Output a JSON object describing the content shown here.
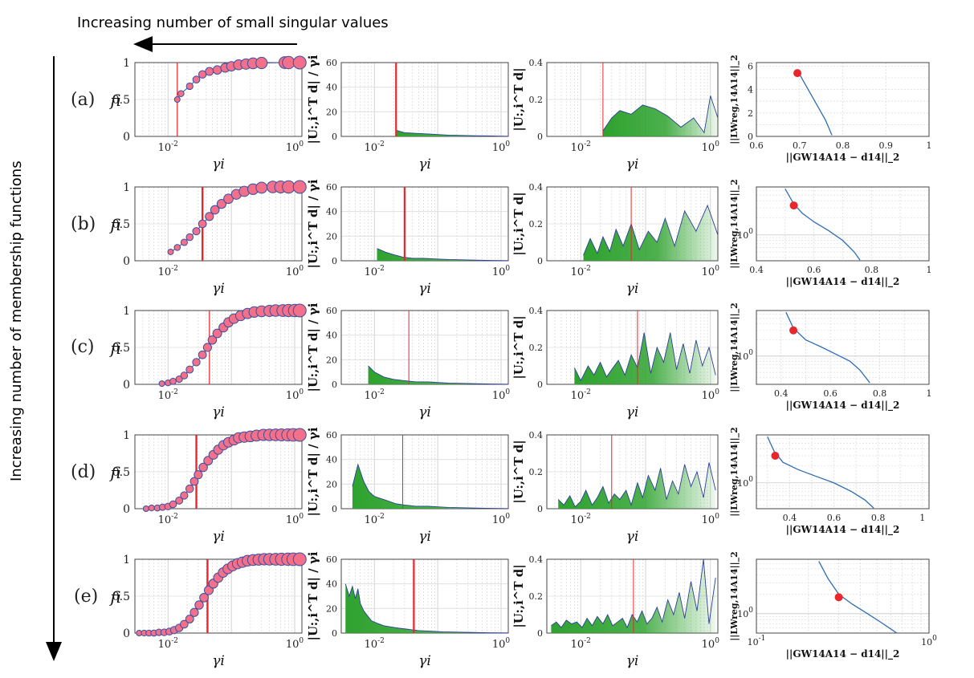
{
  "annotations": {
    "top_arrow_label": "Increasing number of small singular values",
    "side_arrow_label": "Increasing number of membership functions"
  },
  "rows": [
    {
      "label": "(a)"
    },
    {
      "label": "(b)"
    },
    {
      "label": "(c)"
    },
    {
      "label": "(d)"
    },
    {
      "label": "(e)"
    }
  ],
  "chart_data": [
    {
      "type": "scatter",
      "panel": "filter-factors",
      "xlabel": "γ_i",
      "ylabel": "f_i",
      "xscale": "log",
      "xlim": [
        0.003,
        1.3
      ],
      "ylim": [
        0,
        1
      ],
      "yticks": [
        0,
        0.5,
        1
      ],
      "xticks": [
        "10^{-2}",
        "10^{0}"
      ],
      "grid": true,
      "colors": {
        "marker_face": "#f2708a",
        "marker_edge": "#3a4fa0",
        "line": "#3a4fa0",
        "cutoff": "#e8262b"
      },
      "cutoffs": [
        0.014,
        0.035,
        0.045,
        0.028,
        0.042
      ],
      "series": [
        {
          "row": "(a)",
          "x": [
            0.014,
            0.016,
            0.022,
            0.028,
            0.035,
            0.045,
            0.06,
            0.08,
            0.1,
            0.13,
            0.17,
            0.22,
            0.3,
            0.7,
            0.8,
            1.2
          ],
          "y": [
            0.5,
            0.58,
            0.68,
            0.77,
            0.84,
            0.88,
            0.9,
            0.93,
            0.95,
            0.97,
            0.98,
            0.99,
            0.995,
            1.0,
            1.0,
            1.0
          ]
        },
        {
          "row": "(b)",
          "x": [
            0.011,
            0.014,
            0.018,
            0.022,
            0.028,
            0.035,
            0.045,
            0.055,
            0.07,
            0.09,
            0.12,
            0.16,
            0.22,
            0.3,
            0.45,
            0.6,
            0.8,
            1.2
          ],
          "y": [
            0.12,
            0.18,
            0.25,
            0.32,
            0.4,
            0.5,
            0.6,
            0.69,
            0.77,
            0.84,
            0.9,
            0.94,
            0.97,
            0.99,
            1.0,
            1.0,
            1.0,
            1.0
          ]
        },
        {
          "row": "(c)",
          "x": [
            0.008,
            0.01,
            0.012,
            0.015,
            0.018,
            0.022,
            0.028,
            0.035,
            0.042,
            0.05,
            0.06,
            0.075,
            0.09,
            0.11,
            0.14,
            0.18,
            0.23,
            0.3,
            0.4,
            0.5,
            0.65,
            0.8,
            1.0,
            1.2
          ],
          "y": [
            0.01,
            0.02,
            0.04,
            0.07,
            0.12,
            0.2,
            0.3,
            0.4,
            0.5,
            0.6,
            0.69,
            0.77,
            0.84,
            0.89,
            0.93,
            0.96,
            0.98,
            0.99,
            0.995,
            1.0,
            1.0,
            1.0,
            1.0,
            1.0
          ]
        },
        {
          "row": "(d)",
          "x": [
            0.0045,
            0.0055,
            0.0068,
            0.0082,
            0.01,
            0.012,
            0.015,
            0.018,
            0.022,
            0.026,
            0.03,
            0.036,
            0.043,
            0.052,
            0.062,
            0.075,
            0.09,
            0.11,
            0.13,
            0.16,
            0.2,
            0.25,
            0.32,
            0.4,
            0.5,
            0.62,
            0.78,
            0.95,
            1.2
          ],
          "y": [
            0.0,
            0.01,
            0.01,
            0.02,
            0.03,
            0.06,
            0.11,
            0.18,
            0.27,
            0.37,
            0.46,
            0.56,
            0.65,
            0.73,
            0.8,
            0.86,
            0.9,
            0.93,
            0.96,
            0.97,
            0.98,
            0.99,
            1.0,
            1.0,
            1.0,
            1.0,
            1.0,
            1.0,
            1.0
          ]
        },
        {
          "row": "(e)",
          "x": [
            0.0035,
            0.0042,
            0.005,
            0.006,
            0.0072,
            0.0087,
            0.0105,
            0.0125,
            0.015,
            0.018,
            0.022,
            0.026,
            0.031,
            0.037,
            0.044,
            0.052,
            0.062,
            0.074,
            0.088,
            0.105,
            0.125,
            0.15,
            0.18,
            0.22,
            0.27,
            0.33,
            0.4,
            0.5,
            0.62,
            0.78,
            0.95,
            1.2
          ],
          "y": [
            0.0,
            0.0,
            0.0,
            0.0,
            0.01,
            0.01,
            0.02,
            0.04,
            0.07,
            0.12,
            0.19,
            0.28,
            0.38,
            0.48,
            0.58,
            0.67,
            0.75,
            0.82,
            0.87,
            0.91,
            0.94,
            0.96,
            0.98,
            0.99,
            0.995,
            1.0,
            1.0,
            1.0,
            1.0,
            1.0,
            1.0,
            1.0
          ]
        }
      ]
    },
    {
      "type": "area",
      "panel": "picard-ratio",
      "xlabel": "γ_i",
      "ylabel": "|U_{:,i}^T d| / γ_i",
      "xscale": "log",
      "xlim": [
        0.003,
        1.3
      ],
      "ylim": [
        0,
        60
      ],
      "yticks": [
        0,
        20,
        40,
        60
      ],
      "xticks": [
        "10^{-2}",
        "10^{0}"
      ],
      "grid": true,
      "colors": {
        "fill": "#2ea22e",
        "line": "#2b3f9a",
        "cutoff": "#e8262b"
      },
      "cutoffs": [
        0.022,
        0.03,
        0.035,
        0.028,
        0.042
      ],
      "series": [
        {
          "row": "(a)",
          "x": [
            0.022,
            0.03,
            0.045,
            0.07,
            0.1,
            0.15,
            0.25,
            0.4,
            0.6,
            1.0,
            1.3
          ],
          "y": [
            5,
            3,
            2.5,
            2,
            1.5,
            1,
            0.8,
            0.5,
            0.4,
            0.2,
            0.1
          ]
        },
        {
          "row": "(b)",
          "x": [
            0.011,
            0.015,
            0.02,
            0.028,
            0.04,
            0.06,
            0.09,
            0.15,
            0.25,
            0.4,
            0.7,
            1.3
          ],
          "y": [
            10,
            7,
            5,
            3,
            2,
            2,
            1.5,
            1,
            0.8,
            0.5,
            0.3,
            0.1
          ]
        },
        {
          "row": "(c)",
          "x": [
            0.008,
            0.01,
            0.014,
            0.02,
            0.03,
            0.045,
            0.07,
            0.1,
            0.15,
            0.25,
            0.4,
            0.7,
            1.3
          ],
          "y": [
            15,
            10,
            6,
            4,
            3,
            2,
            2,
            1.5,
            1,
            0.8,
            0.5,
            0.3,
            0.1
          ]
        },
        {
          "row": "(d)",
          "x": [
            0.0045,
            0.0055,
            0.0068,
            0.0082,
            0.01,
            0.013,
            0.017,
            0.022,
            0.03,
            0.045,
            0.07,
            0.1,
            0.15,
            0.25,
            0.4,
            0.7,
            1.3
          ],
          "y": [
            18,
            36,
            22,
            14,
            10,
            8,
            6,
            4,
            3,
            2,
            2,
            1.5,
            1,
            0.8,
            0.5,
            0.3,
            0.1
          ]
        },
        {
          "row": "(e)",
          "x": [
            0.0035,
            0.004,
            0.0045,
            0.005,
            0.0055,
            0.006,
            0.0068,
            0.0078,
            0.009,
            0.011,
            0.014,
            0.018,
            0.024,
            0.035,
            0.05,
            0.08,
            0.12,
            0.2,
            0.35,
            0.6,
            1.3
          ],
          "y": [
            40,
            30,
            38,
            28,
            36,
            24,
            18,
            14,
            10,
            8,
            6,
            5,
            4,
            3,
            2,
            1.5,
            1,
            0.8,
            0.5,
            0.3,
            0.1
          ]
        }
      ]
    },
    {
      "type": "area",
      "panel": "picard-coefficients",
      "xlabel": "γ_i",
      "ylabel": "|U_{:,i}^T d|",
      "xscale": "log",
      "xlim": [
        0.003,
        1.3
      ],
      "ylim": [
        0,
        0.4
      ],
      "yticks": [
        0,
        0.2,
        0.4
      ],
      "xticks": [
        "10^{-2}",
        "10^{0}"
      ],
      "grid": true,
      "colors": {
        "fill": "#2ea22e",
        "line": "#2b3f9a",
        "cutoff": "#e8262b"
      },
      "cutoffs": [
        0.022,
        0.06,
        0.075,
        0.03,
        0.065
      ],
      "series": [
        {
          "row": "(a)",
          "x": [
            0.022,
            0.03,
            0.04,
            0.06,
            0.09,
            0.14,
            0.22,
            0.35,
            0.55,
            0.8,
            1.0,
            1.3
          ],
          "y": [
            0.03,
            0.1,
            0.14,
            0.12,
            0.17,
            0.15,
            0.11,
            0.05,
            0.1,
            0.02,
            0.22,
            0.1
          ]
        },
        {
          "row": "(b)",
          "x": [
            0.011,
            0.014,
            0.018,
            0.022,
            0.028,
            0.035,
            0.045,
            0.06,
            0.08,
            0.11,
            0.15,
            0.2,
            0.28,
            0.4,
            0.6,
            0.9,
            1.3
          ],
          "y": [
            0.03,
            0.12,
            0.04,
            0.13,
            0.05,
            0.17,
            0.08,
            0.2,
            0.06,
            0.16,
            0.1,
            0.23,
            0.08,
            0.27,
            0.16,
            0.3,
            0.14
          ]
        },
        {
          "row": "(c)",
          "x": [
            0.008,
            0.01,
            0.013,
            0.016,
            0.02,
            0.025,
            0.03,
            0.038,
            0.048,
            0.06,
            0.075,
            0.095,
            0.12,
            0.15,
            0.19,
            0.24,
            0.3,
            0.38,
            0.48,
            0.6,
            0.75,
            0.95,
            1.2
          ],
          "y": [
            0.09,
            0.02,
            0.1,
            0.05,
            0.12,
            0.04,
            0.08,
            0.13,
            0.05,
            0.16,
            0.09,
            0.28,
            0.06,
            0.2,
            0.12,
            0.28,
            0.08,
            0.22,
            0.06,
            0.24,
            0.1,
            0.2,
            0.05
          ]
        },
        {
          "row": "(d)",
          "x": [
            0.0045,
            0.0055,
            0.0068,
            0.0082,
            0.01,
            0.012,
            0.015,
            0.018,
            0.022,
            0.027,
            0.033,
            0.04,
            0.05,
            0.06,
            0.075,
            0.09,
            0.11,
            0.14,
            0.17,
            0.21,
            0.26,
            0.32,
            0.4,
            0.5,
            0.62,
            0.78,
            0.95,
            1.2
          ],
          "y": [
            0.05,
            0.02,
            0.07,
            0.01,
            0.04,
            0.1,
            0.02,
            0.06,
            0.12,
            0.03,
            0.08,
            0.05,
            0.1,
            0.02,
            0.14,
            0.06,
            0.18,
            0.1,
            0.22,
            0.05,
            0.15,
            0.08,
            0.24,
            0.12,
            0.2,
            0.06,
            0.25,
            0.1
          ]
        },
        {
          "row": "(e)",
          "x": [
            0.0035,
            0.0042,
            0.005,
            0.006,
            0.0072,
            0.0087,
            0.0105,
            0.0125,
            0.015,
            0.018,
            0.022,
            0.026,
            0.031,
            0.037,
            0.044,
            0.052,
            0.062,
            0.074,
            0.088,
            0.105,
            0.125,
            0.15,
            0.18,
            0.22,
            0.27,
            0.33,
            0.4,
            0.5,
            0.62,
            0.78,
            0.95,
            1.2
          ],
          "y": [
            0.04,
            0.06,
            0.03,
            0.07,
            0.05,
            0.06,
            0.03,
            0.08,
            0.04,
            0.09,
            0.05,
            0.1,
            0.04,
            0.06,
            0.08,
            0.03,
            0.1,
            0.06,
            0.12,
            0.05,
            0.08,
            0.14,
            0.06,
            0.18,
            0.1,
            0.22,
            0.08,
            0.28,
            0.12,
            0.4,
            0.05,
            0.3
          ]
        }
      ]
    },
    {
      "type": "line",
      "panel": "l-curve",
      "xlabel": "||GW_{14}A_{14} − d_{14}||_2",
      "ylabel": "||LW_{reg,14}A_{14}||_2",
      "colors": {
        "line": "#2c6db3",
        "marker": "#e8262b"
      },
      "grid": true,
      "series": [
        {
          "row": "(a)",
          "xscale": "linear",
          "yscale": "linear",
          "xlim": [
            0.6,
            1.0
          ],
          "ylim": [
            0,
            6.3
          ],
          "xticks": [
            "0.6",
            "0.7",
            "0.8",
            "0.9",
            "1"
          ],
          "yticks": [
            "0",
            "2",
            "4",
            "6"
          ],
          "x": [
            0.7,
            0.72,
            0.74,
            0.76,
            0.775
          ],
          "y": [
            5.3,
            4.0,
            2.7,
            1.4,
            0.1
          ],
          "marker": [
            0.695,
            5.4
          ]
        },
        {
          "row": "(b)",
          "xscale": "linear",
          "yscale": "log",
          "xlim": [
            0.4,
            1.0
          ],
          "ylim": [
            0.35,
            7.0
          ],
          "xticks": [
            "0.4",
            "0.6",
            "0.8",
            "1"
          ],
          "yticks": [
            "10^{0}"
          ],
          "x": [
            0.5,
            0.53,
            0.56,
            0.6,
            0.65,
            0.7,
            0.74,
            0.76
          ],
          "y": [
            6.5,
            3.5,
            2.4,
            1.7,
            1.2,
            0.8,
            0.5,
            0.36
          ],
          "marker": [
            0.53,
            3.3
          ]
        },
        {
          "row": "(c)",
          "xscale": "linear",
          "yscale": "log",
          "xlim": [
            0.3,
            1.0
          ],
          "ylim": [
            0.3,
            7.0
          ],
          "xticks": [
            "0.4",
            "0.6",
            "0.8",
            "1"
          ],
          "yticks": [
            "10^{0}"
          ],
          "x": [
            0.42,
            0.45,
            0.5,
            0.56,
            0.62,
            0.68,
            0.72,
            0.76
          ],
          "y": [
            6.5,
            3.3,
            2.0,
            1.5,
            1.1,
            0.8,
            0.55,
            0.32
          ],
          "marker": [
            0.45,
            3.0
          ]
        },
        {
          "row": "(d)",
          "xscale": "linear",
          "yscale": "log",
          "xlim": [
            0.25,
            1.03
          ],
          "ylim": [
            0.35,
            7.0
          ],
          "xticks": [
            "0.4",
            "0.6",
            "0.8",
            "1"
          ],
          "yticks": [
            "10^{0}"
          ],
          "x": [
            0.3,
            0.33,
            0.37,
            0.44,
            0.52,
            0.6,
            0.68,
            0.74,
            0.78
          ],
          "y": [
            6.5,
            3.6,
            2.3,
            1.7,
            1.3,
            1.0,
            0.7,
            0.5,
            0.36
          ],
          "marker": [
            0.335,
            3.0
          ]
        },
        {
          "row": "(e)",
          "xscale": "log",
          "yscale": "log",
          "xlim": [
            0.1,
            1.0
          ],
          "ylim": [
            0.5,
            7.0
          ],
          "xticks": [
            "10^{-1}",
            "10^{0}"
          ],
          "yticks": [
            "10^{0}"
          ],
          "x": [
            0.23,
            0.26,
            0.3,
            0.36,
            0.44,
            0.52,
            0.6,
            0.65
          ],
          "y": [
            6.5,
            3.5,
            2.0,
            1.4,
            1.0,
            0.75,
            0.58,
            0.5
          ],
          "marker": [
            0.3,
            1.8
          ]
        }
      ]
    }
  ]
}
